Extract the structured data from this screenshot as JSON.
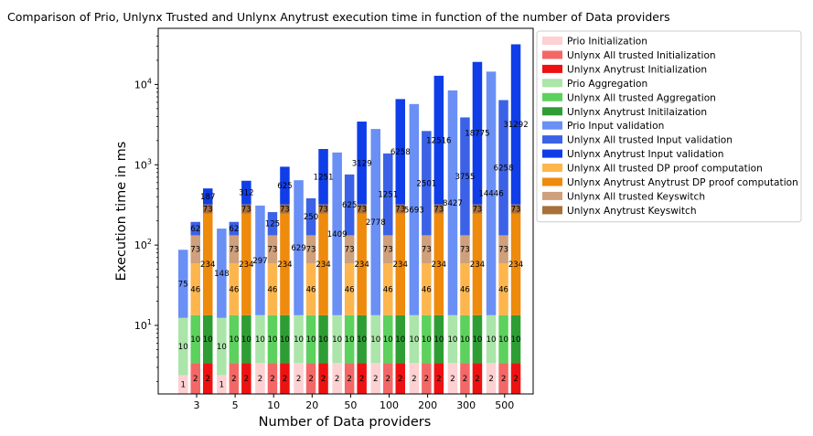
{
  "chart_data": {
    "type": "bar",
    "stacked": true,
    "title": "Comparison of Prio, Unlynx Trusted and Unlynx Anytrust execution time in function of the number of Data providers",
    "xlabel": "Number of Data providers",
    "ylabel": "Execution time in ms",
    "y_scale": "log",
    "ylim": [
      1.4,
      50000
    ],
    "y_ticks": [
      {
        "value": 10,
        "base": "10",
        "exp": "1"
      },
      {
        "value": 100,
        "base": "10",
        "exp": "2"
      },
      {
        "value": 1000,
        "base": "10",
        "exp": "3"
      },
      {
        "value": 10000,
        "base": "10",
        "exp": "4"
      }
    ],
    "categories": [
      "3",
      "5",
      "10",
      "20",
      "50",
      "100",
      "200",
      "300",
      "500"
    ],
    "legend_position": "upper right, outside plot",
    "systems": [
      {
        "name": "Prio",
        "label_color": "#000000",
        "segments": [
          {
            "legend": "Prio Initialization",
            "color": "#fdd0d2",
            "values": [
              1,
              1,
              2,
              2,
              2,
              2,
              2,
              2,
              2
            ],
            "labels": [
              "1",
              "1",
              "2",
              "2",
              "2",
              "2",
              "2",
              "2",
              "2"
            ]
          },
          {
            "legend": "Prio Aggregation",
            "color": "#abe5a9",
            "values": [
              10,
              10,
              10,
              10,
              10,
              10,
              10,
              10,
              10
            ],
            "labels": [
              "10",
              "10",
              "10",
              "10",
              "10",
              "10",
              "10",
              "10",
              "10"
            ]
          },
          {
            "legend": "Prio Input validation",
            "color": "#6a8ff5",
            "values": [
              75,
              148,
              297,
              629,
              1409,
              2778,
              5693,
              8427,
              14446
            ],
            "labels": [
              "75",
              "148",
              "297",
              "629",
              "1409",
              "2778",
              "5693",
              "8427",
              "14446"
            ]
          }
        ]
      },
      {
        "name": "Unlynx All trusted",
        "label_color": "#000000",
        "segments": [
          {
            "legend": "Unlynx All trusted Initialization",
            "color": "#f46767",
            "values": [
              2,
              2,
              2,
              2,
              2,
              2,
              2,
              2,
              2
            ],
            "labels": [
              "2",
              "2",
              "2",
              "2",
              "2",
              "2",
              "2",
              "2",
              "2"
            ]
          },
          {
            "legend": "Unlynx All trusted Aggregation",
            "color": "#5dd15d",
            "values": [
              10,
              10,
              10,
              10,
              10,
              10,
              10,
              10,
              10
            ],
            "labels": [
              "10",
              "10",
              "10",
              "10",
              "10",
              "10",
              "10",
              "10",
              "10"
            ]
          },
          {
            "legend": "Unlynx All trusted DP proof computation",
            "color": "#fdb64e",
            "values": [
              46,
              46,
              46,
              46,
              46,
              46,
              46,
              46,
              46
            ],
            "labels": [
              "46",
              "46",
              "46",
              "46",
              "46",
              "46",
              "46",
              "46",
              "46"
            ]
          },
          {
            "legend": "Unlynx All trusted Keyswitch",
            "color": "#cfa07c",
            "values": [
              73,
              73,
              73,
              73,
              73,
              73,
              73,
              73,
              73
            ],
            "labels": [
              "73",
              "73",
              "73",
              "73",
              "73",
              "73",
              "73",
              "73",
              "73"
            ]
          },
          {
            "legend": "Unlynx All trusted Input validation",
            "color": "#3b62e6",
            "values": [
              62,
              62,
              125,
              250,
              625,
              1251,
              2501,
              3755,
              6258
            ],
            "labels": [
              "62",
              "62",
              "125",
              "250",
              "625",
              "1251",
              "2501",
              "3755",
              "6258"
            ]
          }
        ]
      },
      {
        "name": "Unlynx Anytrust",
        "label_color": "#000000",
        "segments": [
          {
            "legend": "Unlynx Anytrust Initialization",
            "color": "#ee1111",
            "values": [
              2,
              2,
              2,
              2,
              2,
              2,
              2,
              2,
              2
            ],
            "labels": [
              "2",
              "2",
              "2",
              "2",
              "2",
              "2",
              "2",
              "2",
              "2"
            ]
          },
          {
            "legend": "Unlynx Anytrust Initialization",
            "color": "#2e9e34",
            "values": [
              10,
              10,
              10,
              10,
              10,
              10,
              10,
              10,
              10
            ],
            "labels": [
              "10",
              "10",
              "10",
              "10",
              "10",
              "10",
              "10",
              "10",
              "10"
            ]
          },
          {
            "legend": "Unlynx Anytrust Anytrust DP proof computation",
            "color": "#ee8a0c",
            "values": [
              234,
              234,
              234,
              234,
              234,
              234,
              234,
              234,
              234
            ],
            "labels": [
              "234",
              "234",
              "234",
              "234",
              "234",
              "234",
              "234",
              "234",
              "234"
            ]
          },
          {
            "legend": "Unlynx Anytrust Keyswitch",
            "color": "#a8703a",
            "values": [
              73,
              73,
              73,
              73,
              73,
              73,
              73,
              73,
              73
            ],
            "labels": [
              "73",
              "73",
              "73",
              "73",
              "73",
              "73",
              "73",
              "73",
              "73"
            ]
          },
          {
            "legend": "Unlynx Anytrust Input validation",
            "color": "#0f3de8",
            "values": [
              187,
              312,
              625,
              1251,
              3129,
              6258,
              12516,
              18775,
              31292
            ],
            "labels": [
              "187",
              "312",
              "625",
              "1251",
              "3129",
              "6258",
              "12516",
              "18775",
              "31292"
            ]
          }
        ]
      }
    ],
    "legend": [
      {
        "label": "Prio Initialization",
        "color": "#fdd0d2"
      },
      {
        "label": "Unlynx All trusted Initialization",
        "color": "#f46767"
      },
      {
        "label": "Unlynx Anytrust Initialization",
        "color": "#ee1111"
      },
      {
        "label": "Prio Aggregation",
        "color": "#abe5a9"
      },
      {
        "label": "Unlynx All trusted Aggregation",
        "color": "#5dd15d"
      },
      {
        "label": "Unlynx Anytrust Initilaization",
        "color": "#2e9e34"
      },
      {
        "label": "Prio Input validation",
        "color": "#6a8ff5"
      },
      {
        "label": "Unlynx All trusted Input validation",
        "color": "#3b62e6"
      },
      {
        "label": "Unlynx Anytrust Input validation",
        "color": "#0f3de8"
      },
      {
        "label": "Unlynx All trusted DP proof computation",
        "color": "#fdb64e"
      },
      {
        "label": "Unlynx Anytrust Anytrust DP proof computation",
        "color": "#ee8a0c"
      },
      {
        "label": "Unlynx All trusted Keyswitch",
        "color": "#cfa07c"
      },
      {
        "label": "Unlynx Anytrust Keyswitch",
        "color": "#a8703a"
      }
    ]
  }
}
